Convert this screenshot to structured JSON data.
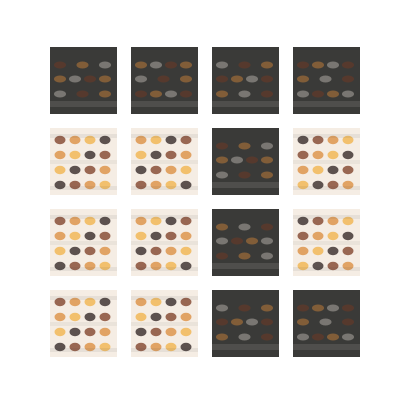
{
  "figure": {
    "rows": 4,
    "cols": 4,
    "colors": {
      "background": "#ffffff",
      "dark_base": "#3f3f3d",
      "light_base": "#fbf4ec",
      "dark_blob": "#2a1e1e",
      "brown_blob": "#7a3a22",
      "orange_blob": "#d98a3a",
      "yellow_blob": "#f0b046",
      "pale_band": "#f1e7df"
    },
    "tiles": [
      {
        "tone": "dark"
      },
      {
        "tone": "dark"
      },
      {
        "tone": "dark"
      },
      {
        "tone": "dark"
      },
      {
        "tone": "light"
      },
      {
        "tone": "light"
      },
      {
        "tone": "dark"
      },
      {
        "tone": "light"
      },
      {
        "tone": "light"
      },
      {
        "tone": "light"
      },
      {
        "tone": "dark"
      },
      {
        "tone": "light"
      },
      {
        "tone": "light"
      },
      {
        "tone": "light"
      },
      {
        "tone": "dark"
      },
      {
        "tone": "dark"
      }
    ]
  }
}
